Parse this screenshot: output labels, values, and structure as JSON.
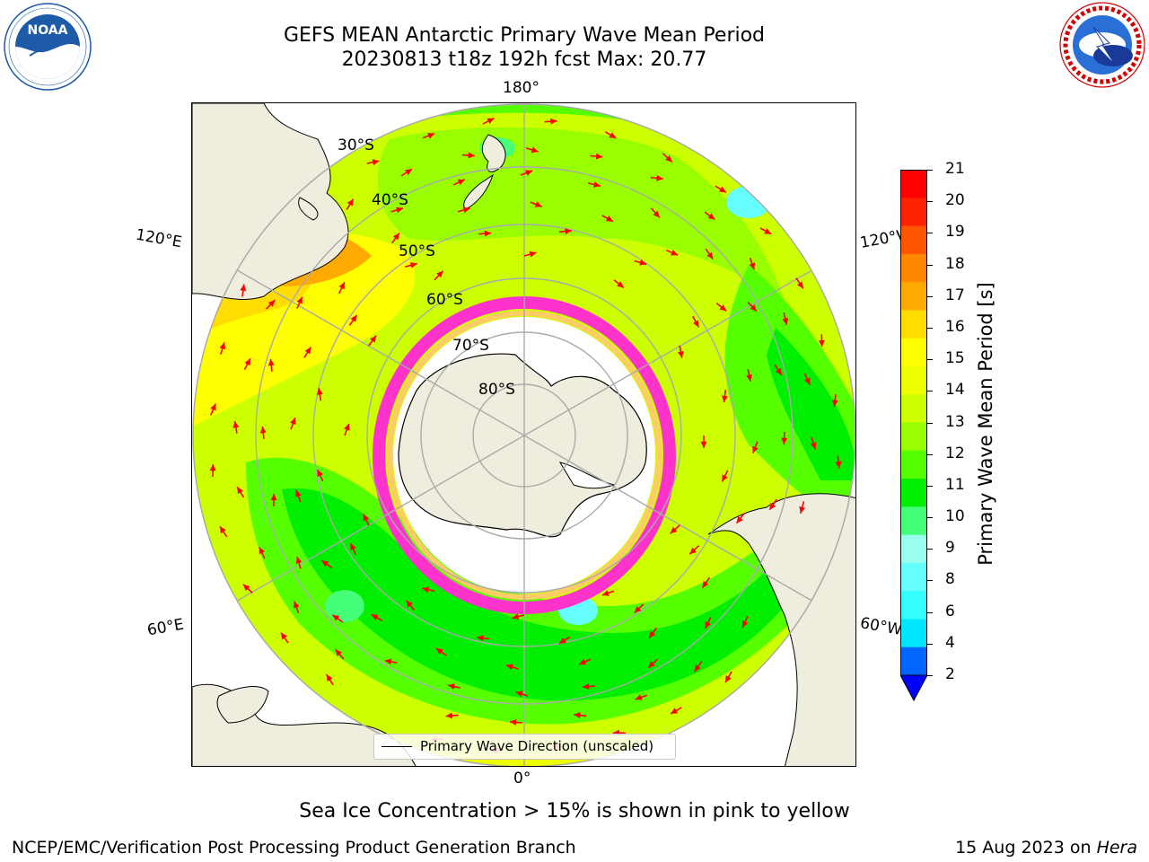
{
  "header": {
    "title_line1": "GEFS MEAN Antarctic Primary Wave Mean Period",
    "title_line2": "20230813 t18z 192h fcst   Max: 20.77"
  },
  "logos": {
    "noaa": {
      "name": "NOAA",
      "ring_text": "NATIONAL OCEANIC AND ATMOSPHERIC ADMINISTRATION • U.S. DEPARTMENT OF COMMERCE"
    },
    "nws": {
      "ring_text": "NATIONAL WEATHER SERVICE"
    }
  },
  "map": {
    "projection": "south polar stereographic",
    "lon_labels": {
      "top": "180°",
      "bottom": "0°",
      "left_upper": "120°E",
      "right_upper": "120°W",
      "left_lower": "60°E",
      "right_lower": "60°W"
    },
    "lat_labels": [
      "30°S",
      "40°S",
      "50°S",
      "60°S",
      "70°S",
      "80°S"
    ],
    "legend_text": "Primary Wave Direction (unscaled)",
    "arrow_color": "#ff0000",
    "sea_ice_colors": [
      "#ff33cc",
      "#ffcc66",
      "#ffff66"
    ],
    "land_color": "#efedde"
  },
  "colorbar": {
    "label": "Primary Wave Mean Period [s]",
    "ticks": [
      "21",
      "20",
      "19",
      "18",
      "17",
      "16",
      "15",
      "14",
      "13",
      "12",
      "11",
      "10",
      "9",
      "8",
      "6",
      "4",
      "2"
    ],
    "colors": [
      "#0000ff",
      "#0066ff",
      "#00e6ff",
      "#33ffff",
      "#66ffff",
      "#99ffee",
      "#44ff77",
      "#00ee00",
      "#55ff00",
      "#99ff00",
      "#ccff00",
      "#eeff00",
      "#ffff00",
      "#ffdd00",
      "#ffaa00",
      "#ff8800",
      "#ff5500",
      "#ff2200",
      "#ff0000"
    ]
  },
  "note": "Sea Ice Concentration > 15% is shown in pink to yellow",
  "footer": {
    "left": "NCEP/EMC/Verification Post Processing Product Generation Branch",
    "date": "15 Aug 2023 on ",
    "host": "Hera"
  }
}
